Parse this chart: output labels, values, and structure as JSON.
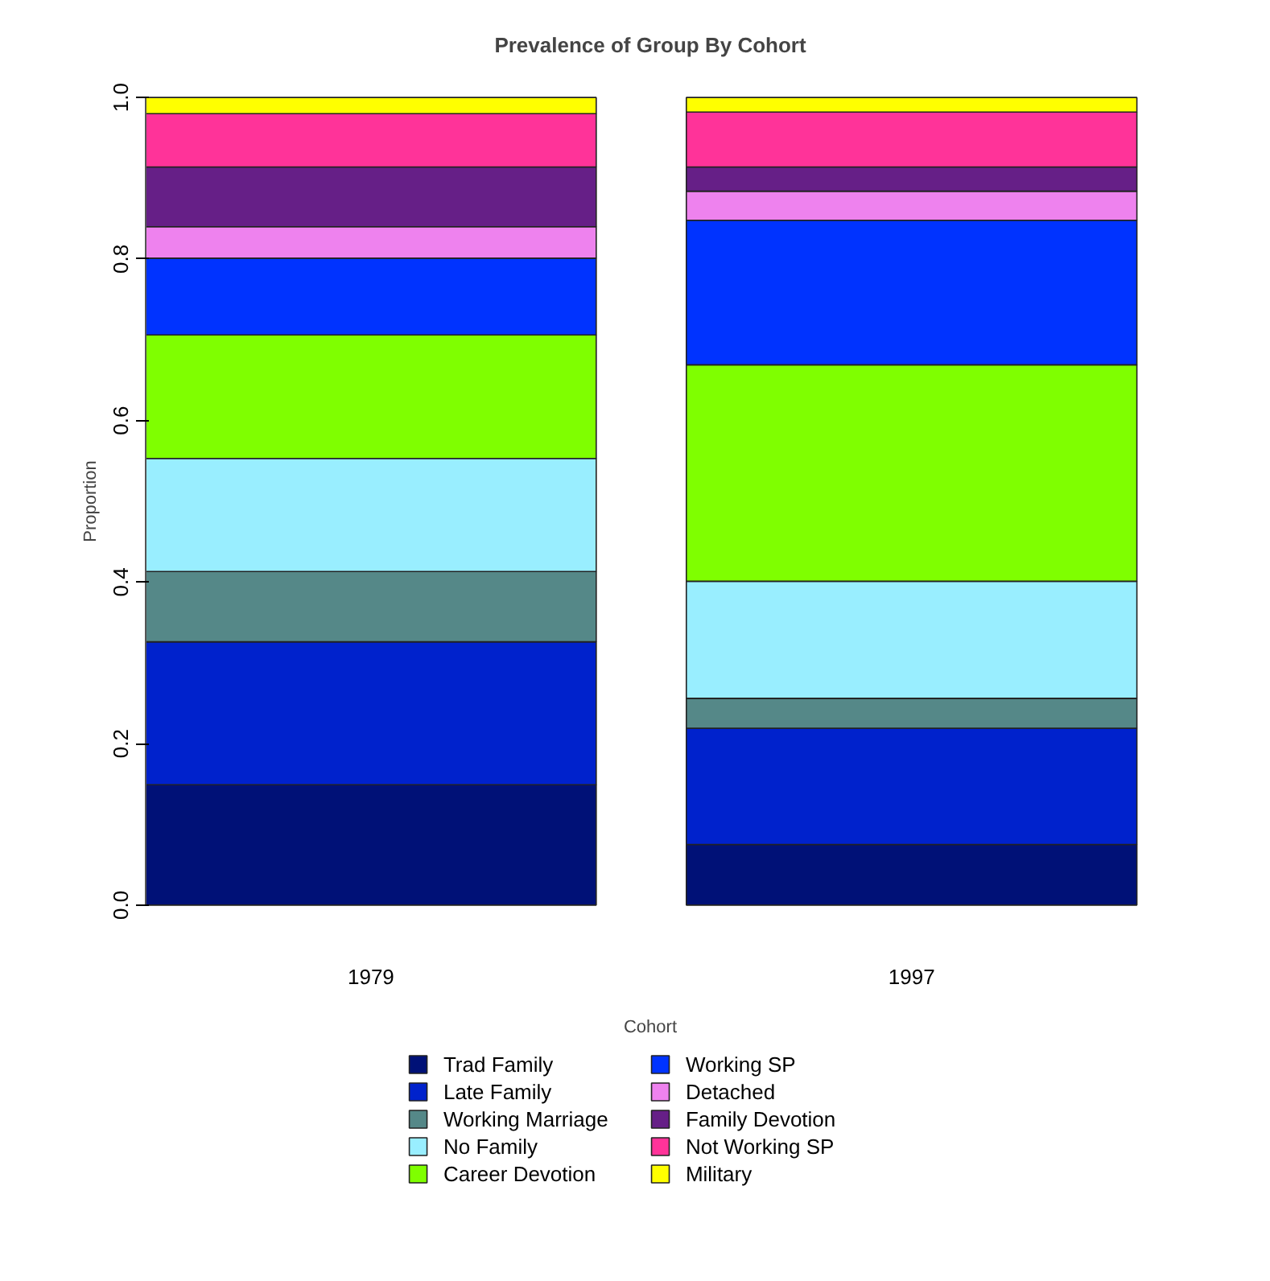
{
  "chart_data": {
    "type": "bar",
    "stacked": true,
    "title": "Prevalence of Group By Cohort",
    "xlabel": "Cohort",
    "ylabel": "Proportion",
    "categories": [
      "1979",
      "1997"
    ],
    "series": [
      {
        "name": "Trad Family",
        "color": "#001177",
        "values": [
          0.149,
          0.075
        ]
      },
      {
        "name": "Late Family",
        "color": "#0022cc",
        "values": [
          0.177,
          0.144
        ]
      },
      {
        "name": "Working Marriage",
        "color": "#558888",
        "values": [
          0.087,
          0.037
        ]
      },
      {
        "name": "No Family",
        "color": "#99eeff",
        "values": [
          0.14,
          0.145
        ]
      },
      {
        "name": "Career Devotion",
        "color": "#7fff00",
        "values": [
          0.153,
          0.268
        ]
      },
      {
        "name": "Working SP",
        "color": "#0033ff",
        "values": [
          0.095,
          0.179
        ]
      },
      {
        "name": "Detached",
        "color": "#ee82ee",
        "values": [
          0.039,
          0.036
        ]
      },
      {
        "name": "Family Devotion",
        "color": "#661f87",
        "values": [
          0.074,
          0.03
        ]
      },
      {
        "name": "Not Working SP",
        "color": "#ff3399",
        "values": [
          0.066,
          0.068
        ]
      },
      {
        "name": "Military",
        "color": "#ffff00",
        "values": [
          0.02,
          0.018
        ]
      }
    ],
    "ylim": [
      0,
      1
    ],
    "yticks": [
      {
        "value": 0,
        "label": "0.0"
      },
      {
        "value": 0.2,
        "label": "0.2"
      },
      {
        "value": 0.4,
        "label": "0.4"
      },
      {
        "value": 0.6,
        "label": "0.6"
      },
      {
        "value": 0.8,
        "label": "0.8"
      },
      {
        "value": 1,
        "label": "1.0"
      }
    ],
    "grid": false,
    "legend": "bottom"
  }
}
